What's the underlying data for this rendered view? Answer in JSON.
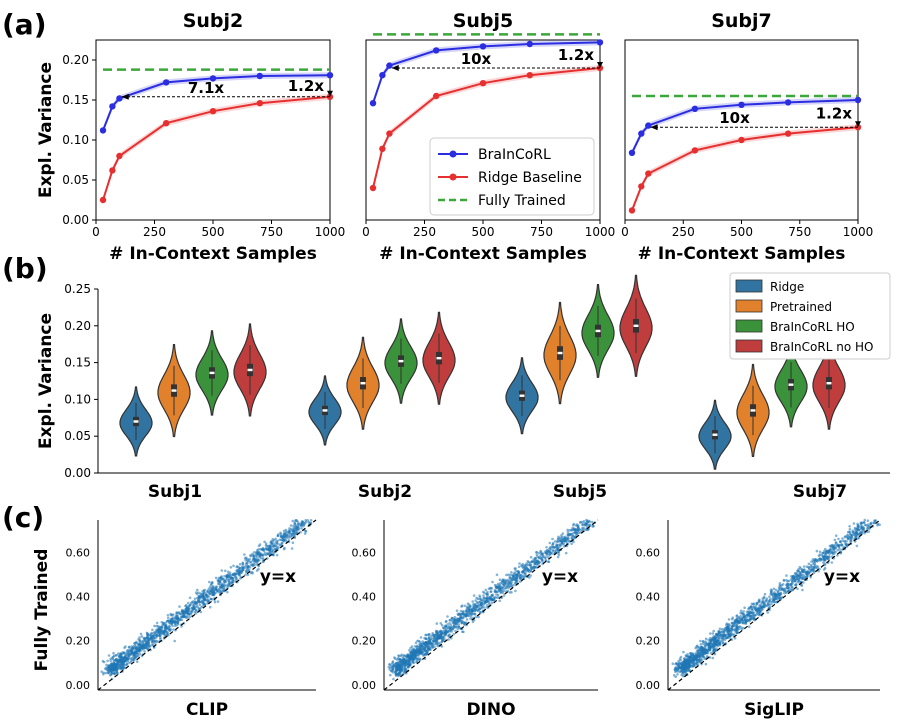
{
  "figure_labels": {
    "a": "(a)",
    "b": "(b)",
    "c": "(c)"
  },
  "chart_data": [
    {
      "type": "line",
      "panel": "a",
      "shared": {
        "xlabel": "# In-Context Samples",
        "ylabel": "Expl. Variance",
        "xlim": [
          0,
          1000
        ],
        "ylim": [
          0,
          0.225
        ],
        "xticks": [
          "0",
          "250",
          "500",
          "750",
          "1000"
        ],
        "yticks": [
          "0.00",
          "0.05",
          "0.10",
          "0.15",
          "0.20"
        ],
        "x": [
          30,
          70,
          100,
          300,
          500,
          700,
          1000
        ],
        "legend": {
          "placement": "bottom-right of middle panel",
          "entries": [
            "BraInCoRL",
            "Ridge Baseline",
            "Fully Trained"
          ]
        },
        "colors": {
          "brain": "#2b2de0",
          "ridge": "#e63030",
          "full": "#3aa83a"
        }
      },
      "panels": [
        {
          "title": "Subj2",
          "brain": [
            0.112,
            0.142,
            0.152,
            0.172,
            0.177,
            0.18,
            0.181
          ],
          "ridge": [
            0.025,
            0.062,
            0.08,
            0.121,
            0.136,
            0.146,
            0.154
          ],
          "full": 0.188,
          "annotations": [
            "7.1x",
            "1.2x"
          ]
        },
        {
          "title": "Subj5",
          "brain": [
            0.146,
            0.181,
            0.193,
            0.212,
            0.217,
            0.22,
            0.222
          ],
          "ridge": [
            0.04,
            0.089,
            0.108,
            0.155,
            0.171,
            0.181,
            0.19
          ],
          "full": 0.232,
          "annotations": [
            "10x",
            "1.2x"
          ]
        },
        {
          "title": "Subj7",
          "brain": [
            0.084,
            0.108,
            0.118,
            0.139,
            0.144,
            0.147,
            0.15
          ],
          "ridge": [
            0.012,
            0.042,
            0.058,
            0.087,
            0.1,
            0.108,
            0.116
          ],
          "full": 0.155,
          "annotations": [
            "10x",
            "1.2x"
          ]
        }
      ]
    },
    {
      "type": "violin",
      "panel": "b",
      "ylabel": "Expl. Variance",
      "ylim": [
        0,
        0.25
      ],
      "yticks": [
        "0.00",
        "0.05",
        "0.10",
        "0.15",
        "0.20",
        "0.25"
      ],
      "groups": [
        "Subj1",
        "Subj2",
        "Subj5",
        "Subj7"
      ],
      "series": [
        {
          "name": "Ridge",
          "color": "#3274a1",
          "medians": [
            0.07,
            0.085,
            0.105,
            0.052
          ]
        },
        {
          "name": "Pretrained",
          "color": "#e1812c",
          "medians": [
            0.112,
            0.122,
            0.163,
            0.085
          ]
        },
        {
          "name": "BraInCoRL HO",
          "color": "#3a923a",
          "medians": [
            0.136,
            0.152,
            0.193,
            0.12
          ]
        },
        {
          "name": "BraInCoRL no HO",
          "color": "#c03d3e",
          "medians": [
            0.14,
            0.156,
            0.2,
            0.122
          ]
        }
      ]
    },
    {
      "type": "scatter",
      "panel": "c",
      "ylabel": "Fully Trained",
      "yticks": [
        "0.00",
        "0.20",
        "0.40",
        "0.60"
      ],
      "annotation": "y=x",
      "point_color": "#1f77b4",
      "panels": [
        {
          "xlabel": "CLIP"
        },
        {
          "xlabel": "DINO"
        },
        {
          "xlabel": "SigLIP"
        }
      ]
    }
  ]
}
